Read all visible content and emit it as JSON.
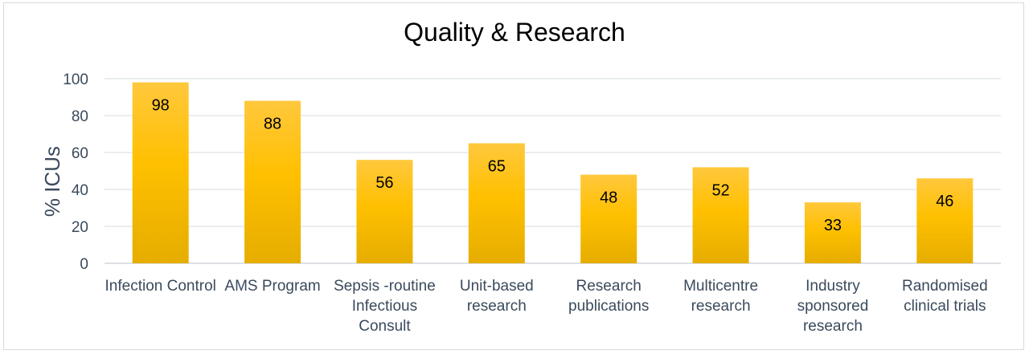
{
  "chart_data": {
    "type": "bar",
    "title": "Quality & Research",
    "ylabel": "% ICUs",
    "xlabel": "",
    "ylim": [
      0,
      100
    ],
    "yticks": [
      0,
      20,
      40,
      60,
      80,
      100
    ],
    "grid": true,
    "categories": [
      [
        "Infection Control"
      ],
      [
        "AMS Program"
      ],
      [
        "Sepsis -routine",
        "Infectious",
        "Consult"
      ],
      [
        "Unit-based",
        "research"
      ],
      [
        "Research",
        "publications"
      ],
      [
        "Multicentre",
        "research"
      ],
      [
        "Industry",
        "sponsored",
        "research"
      ],
      [
        "Randomised",
        "clinical trials"
      ]
    ],
    "values": [
      98,
      88,
      56,
      65,
      48,
      52,
      33,
      46
    ],
    "bar_color": "#ffc000",
    "bar_color_dark": "#e6ad00"
  }
}
